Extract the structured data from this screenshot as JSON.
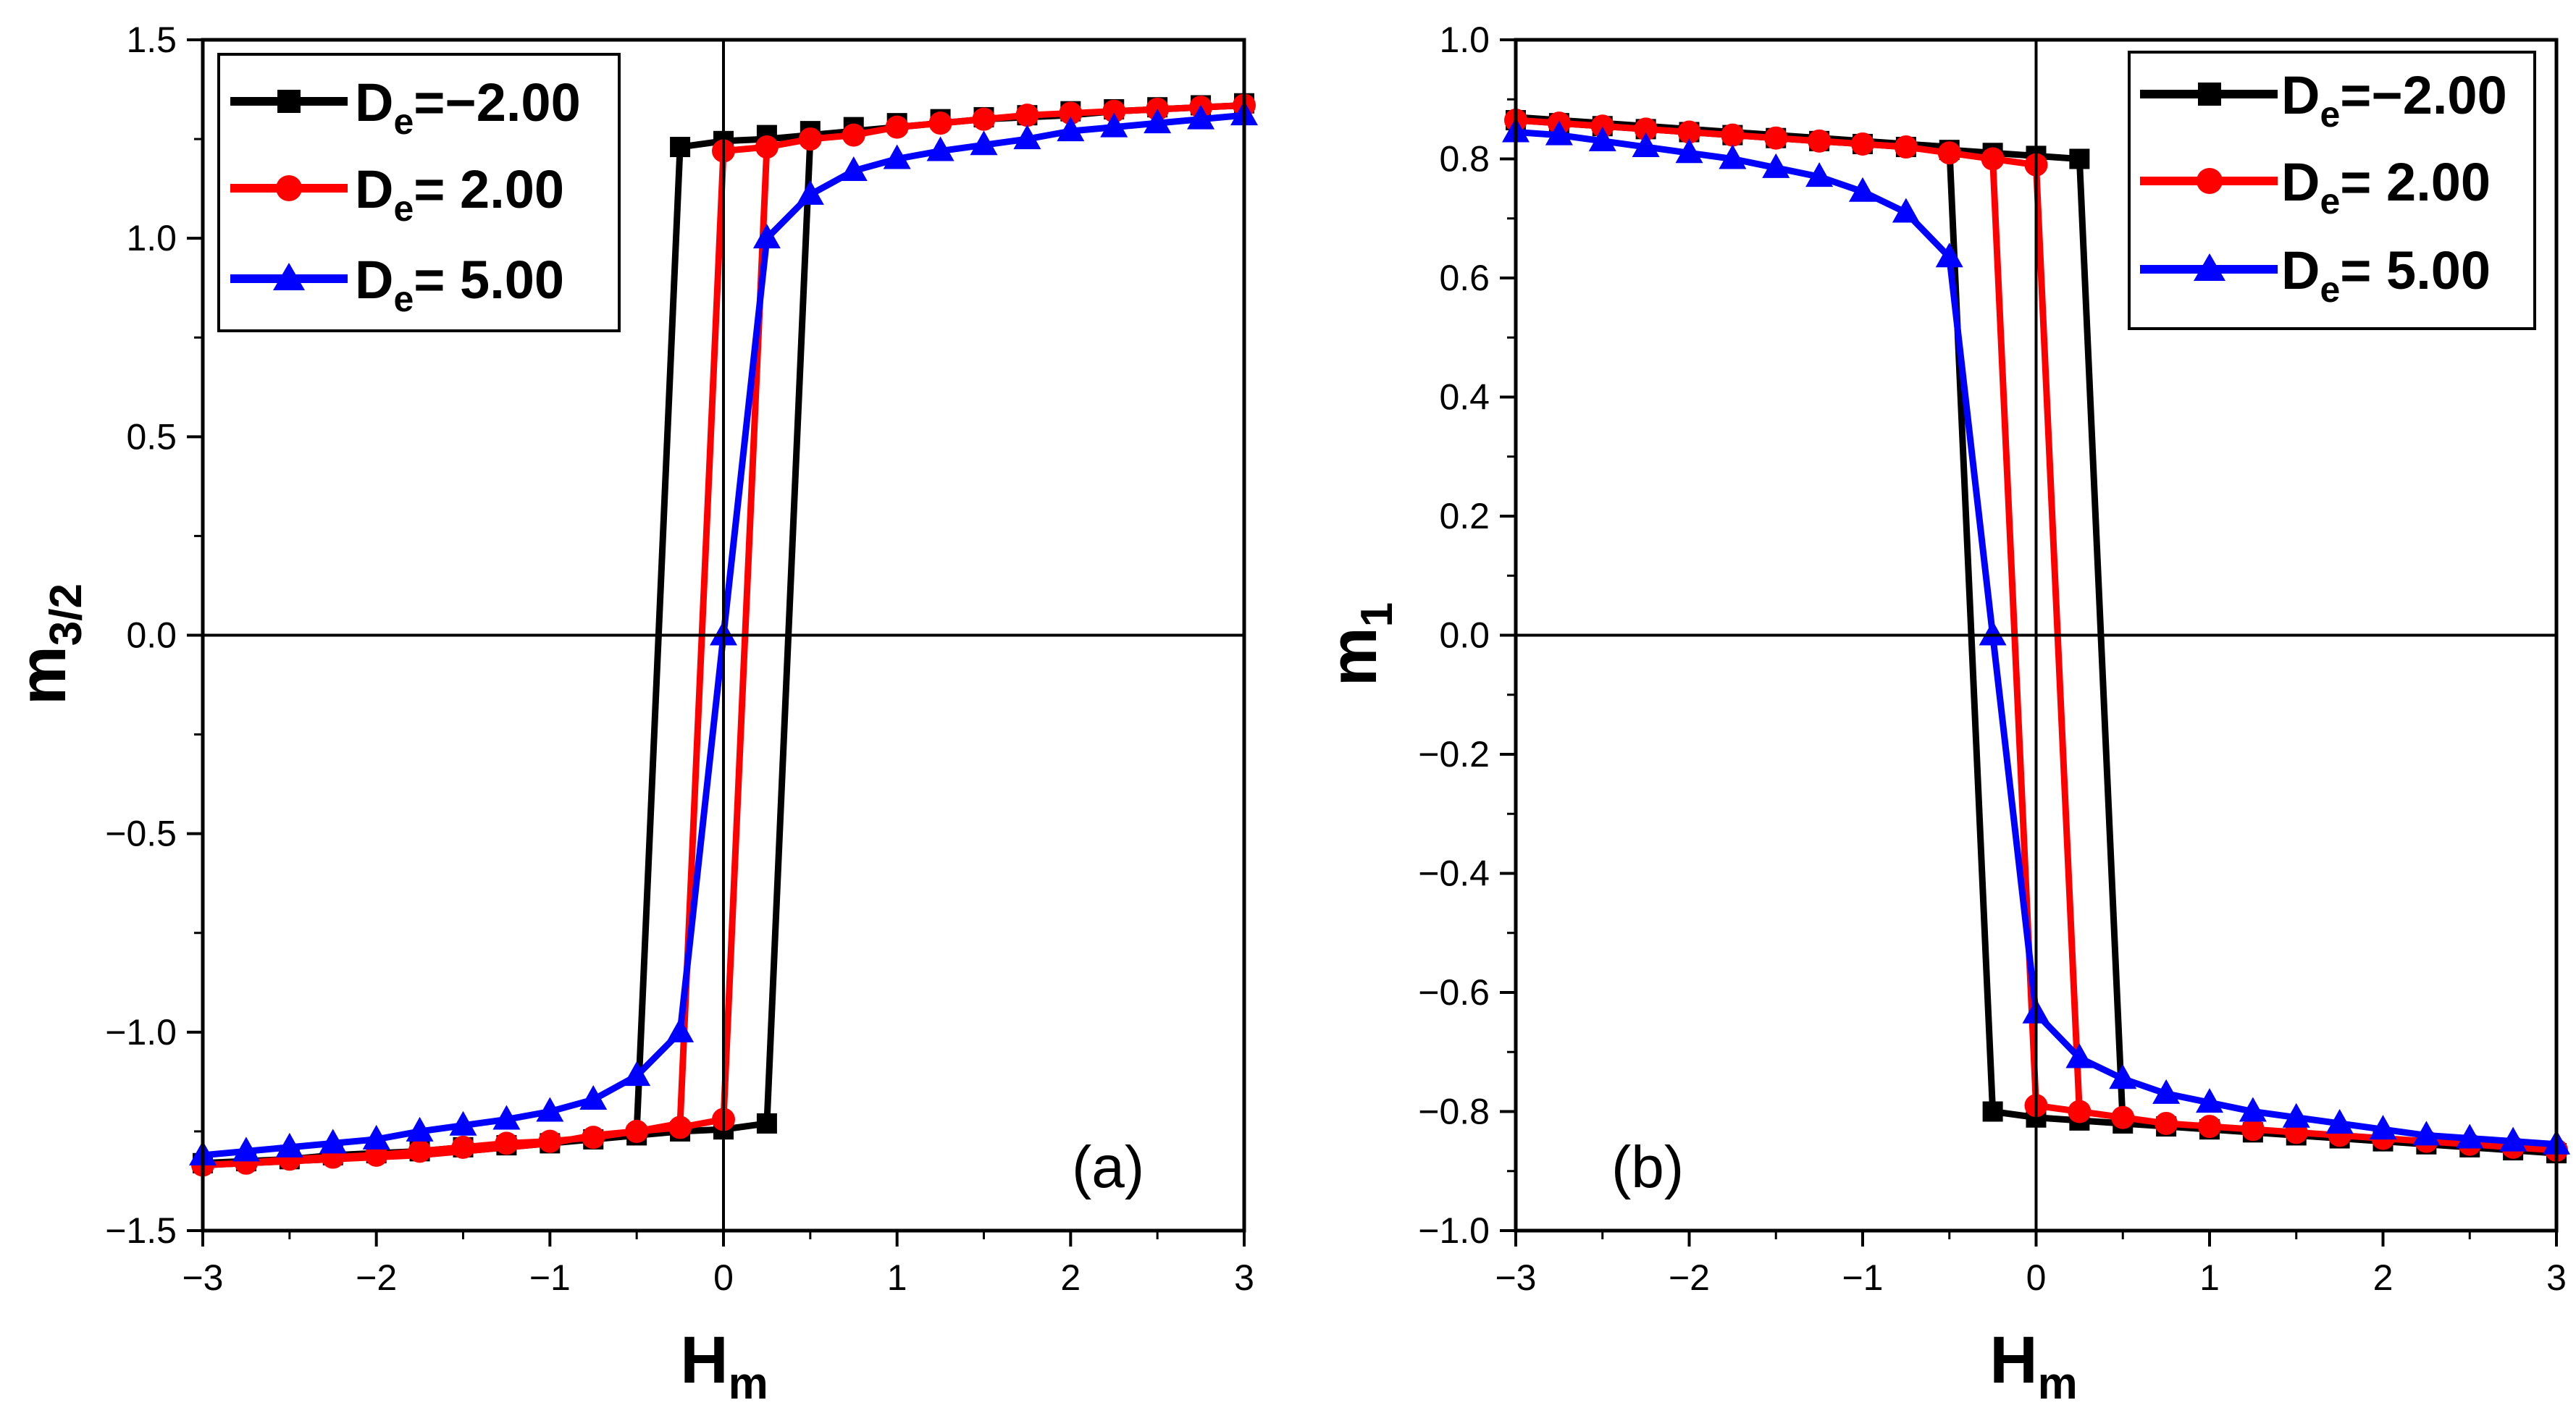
{
  "chart_data": [
    {
      "type": "line",
      "panel_label": "(a)",
      "xlabel": "H",
      "xlabel_sub": "m",
      "ylabel": "m",
      "ylabel_sub": "3/2",
      "xlim": [
        -3,
        3
      ],
      "ylim": [
        -1.5,
        1.5
      ],
      "xticks": [
        -3,
        -2,
        -1,
        0,
        1,
        2,
        3
      ],
      "xtick_labels": [
        "−3",
        "−2",
        "−1",
        "0",
        "1",
        "2",
        "3"
      ],
      "yticks": [
        -1.5,
        -1.0,
        -0.5,
        0.0,
        0.5,
        1.0,
        1.5
      ],
      "ytick_labels": [
        "−1.5",
        "−1.0",
        "−0.5",
        "0.0",
        "0.5",
        "1.0",
        "1.5"
      ],
      "legend_position": "top-left",
      "series": [
        {
          "name": "D_e=−2.00",
          "legend_main": "D",
          "legend_sub": "e",
          "legend_value": "=−2.00",
          "color": "#000000",
          "marker": "square",
          "x": [
            -3,
            -2.75,
            -2.5,
            -2.25,
            -2,
            -1.75,
            -1.5,
            -1.25,
            -1,
            -0.75,
            -0.5,
            -0.25,
            0,
            0.25,
            0.5,
            0.75,
            1,
            1.25,
            1.5,
            1.75,
            2,
            2.25,
            2.5,
            2.75,
            3,
            2.75,
            2.5,
            2.25,
            2,
            1.75,
            1.5,
            1.25,
            1,
            0.75,
            0.5,
            0.25,
            0,
            -0.25,
            -0.5,
            -0.75,
            -1,
            -1.25,
            -1.5,
            -1.75,
            -2,
            -2.25,
            -2.5,
            -2.75,
            -3
          ],
          "y": [
            -1.33,
            -1.325,
            -1.32,
            -1.31,
            -1.305,
            -1.3,
            -1.29,
            -1.285,
            -1.28,
            -1.27,
            -1.26,
            -1.25,
            -1.245,
            -1.23,
            1.25,
            1.27,
            1.28,
            1.29,
            1.3,
            1.305,
            1.31,
            1.32,
            1.325,
            1.33,
            1.335,
            1.33,
            1.325,
            1.32,
            1.31,
            1.305,
            1.3,
            1.29,
            1.28,
            1.27,
            1.26,
            1.25,
            1.245,
            1.23,
            -1.25,
            -1.27,
            -1.28,
            -1.29,
            -1.3,
            -1.305,
            -1.31,
            -1.32,
            -1.325,
            -1.33,
            -1.335
          ],
          "markers_x": [
            -3,
            -2.75,
            -2.5,
            -2.25,
            -2,
            -1.75,
            -1.5,
            -1.25,
            -1,
            -0.75,
            -0.5,
            -0.25,
            0,
            0.25,
            0.5,
            0.75,
            1,
            1.25,
            1.5,
            1.75,
            2,
            2.25,
            2.5,
            2.75,
            3
          ],
          "markers_y": [
            -1.33,
            -1.325,
            -1.32,
            -1.31,
            -1.305,
            -1.3,
            -1.29,
            -1.285,
            -1.28,
            -1.27,
            -1.26,
            -1.25,
            1.245,
            1.26,
            1.27,
            1.28,
            1.29,
            1.3,
            1.305,
            1.31,
            1.32,
            1.325,
            1.33,
            1.335,
            1.34
          ],
          "extra_markers_x": [
            -0.25,
            0,
            0.25
          ],
          "extra_markers_y": [
            1.23,
            -1.245,
            -1.23
          ]
        },
        {
          "name": "D_e= 2.00",
          "legend_main": "D",
          "legend_sub": "e",
          "legend_value": "= 2.00",
          "color": "#ff0000",
          "marker": "circle",
          "x": [
            -3,
            -2.75,
            -2.5,
            -2.25,
            -2,
            -1.75,
            -1.5,
            -1.25,
            -1,
            -0.75,
            -0.5,
            -0.25,
            0,
            0.25,
            0.5,
            0.75,
            1,
            1.25,
            1.5,
            1.75,
            2,
            2.25,
            2.5,
            2.75,
            3,
            2.75,
            2.5,
            2.25,
            2,
            1.75,
            1.5,
            1.25,
            1,
            0.75,
            0.5,
            0.25,
            0,
            -0.25,
            -0.5,
            -0.75,
            -1,
            -1.25,
            -1.5,
            -1.75,
            -2,
            -2.25,
            -2.5,
            -2.75,
            -3
          ],
          "y": [
            -1.335,
            -1.33,
            -1.32,
            -1.315,
            -1.31,
            -1.3,
            -1.29,
            -1.28,
            -1.275,
            -1.265,
            -1.25,
            -1.24,
            -1.22,
            1.23,
            1.25,
            1.26,
            1.28,
            1.29,
            1.3,
            1.31,
            1.315,
            1.32,
            1.325,
            1.33,
            1.335,
            1.33,
            1.325,
            1.32,
            1.315,
            1.31,
            1.3,
            1.29,
            1.28,
            1.26,
            1.25,
            1.23,
            1.22,
            -1.23,
            -1.25,
            -1.26,
            -1.28,
            -1.29,
            -1.3,
            -1.31,
            -1.315,
            -1.32,
            -1.325,
            -1.33,
            -1.335
          ],
          "markers_x": [
            -3,
            -2.75,
            -2.5,
            -2.25,
            -2,
            -1.75,
            -1.5,
            -1.25,
            -1,
            -0.75,
            -0.5,
            -0.25,
            0,
            0,
            0.25,
            0.5,
            0.75,
            1,
            1.25,
            1.5,
            1.75,
            2,
            2.25,
            2.5,
            2.75,
            3
          ],
          "markers_y": [
            -1.335,
            -1.33,
            -1.32,
            -1.315,
            -1.31,
            -1.3,
            -1.29,
            -1.28,
            -1.275,
            -1.265,
            -1.25,
            -1.24,
            -1.22,
            1.22,
            1.23,
            1.25,
            1.26,
            1.28,
            1.29,
            1.3,
            1.31,
            1.315,
            1.32,
            1.325,
            1.33,
            1.335
          ]
        },
        {
          "name": "D_e= 5.00",
          "legend_main": "D",
          "legend_sub": "e",
          "legend_value": "= 5.00",
          "color": "#0000ff",
          "marker": "triangle",
          "x": [
            -3,
            -2.75,
            -2.5,
            -2.25,
            -2,
            -1.75,
            -1.5,
            -1.25,
            -1,
            -0.75,
            -0.5,
            -0.25,
            0,
            0.25,
            0.5,
            0.75,
            1,
            1.25,
            1.5,
            1.75,
            2,
            2.25,
            2.5,
            2.75,
            3
          ],
          "y": [
            -1.31,
            -1.3,
            -1.29,
            -1.28,
            -1.27,
            -1.25,
            -1.235,
            -1.22,
            -1.2,
            -1.17,
            -1.11,
            -1.0,
            0.0,
            1.0,
            1.11,
            1.17,
            1.2,
            1.22,
            1.235,
            1.25,
            1.27,
            1.28,
            1.29,
            1.3,
            1.31
          ]
        }
      ]
    },
    {
      "type": "line",
      "panel_label": "(b)",
      "xlabel": "H",
      "xlabel_sub": "m",
      "ylabel": "m",
      "ylabel_sub": "1",
      "xlim": [
        -3,
        3
      ],
      "ylim": [
        -1.0,
        1.0
      ],
      "xticks": [
        -3,
        -2,
        -1,
        0,
        1,
        2,
        3
      ],
      "xtick_labels": [
        "−3",
        "−2",
        "−1",
        "0",
        "1",
        "2",
        "3"
      ],
      "yticks": [
        -1.0,
        -0.8,
        -0.6,
        -0.4,
        -0.2,
        0.0,
        0.2,
        0.4,
        0.6,
        0.8,
        1.0
      ],
      "ytick_labels": [
        "−1.0",
        "−0.8",
        "−0.6",
        "−0.4",
        "−0.2",
        "0.0",
        "0.2",
        "0.4",
        "0.6",
        "0.8",
        "1.0"
      ],
      "legend_position": "top-right",
      "series": [
        {
          "name": "D_e=−2.00",
          "legend_main": "D",
          "legend_sub": "e",
          "legend_value": "=−2.00",
          "color": "#000000",
          "marker": "square",
          "x": [
            -3,
            -2.75,
            -2.5,
            -2.25,
            -2,
            -1.75,
            -1.5,
            -1.25,
            -1,
            -0.75,
            -0.5,
            -0.25,
            0,
            0.25,
            0.5,
            0.75,
            1,
            1.25,
            1.5,
            1.75,
            2,
            2.25,
            2.5,
            2.75,
            3,
            2.75,
            2.5,
            2.25,
            2,
            1.75,
            1.5,
            1.25,
            1,
            0.75,
            0.5,
            0.25,
            0,
            -0.25,
            -0.5,
            -0.75,
            -1,
            -1.25,
            -1.5,
            -1.75,
            -2,
            -2.25,
            -2.5,
            -2.75,
            -3
          ],
          "y": [
            0.865,
            0.86,
            0.855,
            0.85,
            0.845,
            0.84,
            0.835,
            0.83,
            0.825,
            0.82,
            0.815,
            0.81,
            0.805,
            0.8,
            -0.82,
            -0.825,
            -0.83,
            -0.835,
            -0.84,
            -0.845,
            -0.85,
            -0.855,
            -0.86,
            -0.865,
            -0.87,
            -0.865,
            -0.86,
            -0.855,
            -0.85,
            -0.845,
            -0.84,
            -0.835,
            -0.83,
            -0.825,
            -0.82,
            -0.815,
            -0.81,
            -0.8,
            0.82,
            0.825,
            0.83,
            0.835,
            0.84,
            0.845,
            0.85,
            0.855,
            0.86,
            0.865,
            0.87
          ],
          "markers_x": [
            -3,
            -2.75,
            -2.5,
            -2.25,
            -2,
            -1.75,
            -1.5,
            -1.25,
            -1,
            -0.75,
            -0.5,
            -0.25,
            0,
            0.25,
            0,
            0.25,
            0.5,
            0.75,
            1,
            1.25,
            1.5,
            1.75,
            2,
            2.25,
            2.5,
            2.75,
            3,
            -0.25
          ],
          "markers_y": [
            0.865,
            0.86,
            0.855,
            0.85,
            0.845,
            0.84,
            0.835,
            0.83,
            0.825,
            0.82,
            0.815,
            0.81,
            0.805,
            0.8,
            -0.81,
            -0.815,
            -0.82,
            -0.825,
            -0.83,
            -0.835,
            -0.84,
            -0.845,
            -0.85,
            -0.855,
            -0.86,
            -0.865,
            -0.87,
            -0.8
          ]
        },
        {
          "name": "D_e= 2.00",
          "legend_main": "D",
          "legend_sub": "e",
          "legend_value": "= 2.00",
          "color": "#ff0000",
          "marker": "circle",
          "x": [
            -3,
            -2.75,
            -2.5,
            -2.25,
            -2,
            -1.75,
            -1.5,
            -1.25,
            -1,
            -0.75,
            -0.5,
            -0.25,
            0,
            0.25,
            0.5,
            0.75,
            1,
            1.25,
            1.5,
            1.75,
            2,
            2.25,
            2.5,
            2.75,
            3,
            2.75,
            2.5,
            2.25,
            2,
            1.75,
            1.5,
            1.25,
            1,
            0.75,
            0.5,
            0.25,
            0,
            -0.25,
            -0.5,
            -0.75,
            -1,
            -1.25,
            -1.5,
            -1.75,
            -2,
            -2.25,
            -2.5,
            -2.75,
            -3
          ],
          "y": [
            0.865,
            0.86,
            0.855,
            0.85,
            0.845,
            0.84,
            0.835,
            0.83,
            0.825,
            0.82,
            0.81,
            0.8,
            0.79,
            -0.8,
            -0.81,
            -0.82,
            -0.825,
            -0.83,
            -0.835,
            -0.84,
            -0.845,
            -0.85,
            -0.855,
            -0.86,
            -0.865,
            -0.86,
            -0.855,
            -0.85,
            -0.845,
            -0.84,
            -0.835,
            -0.83,
            -0.825,
            -0.82,
            -0.81,
            -0.8,
            -0.79,
            0.8,
            0.81,
            0.82,
            0.825,
            0.83,
            0.835,
            0.84,
            0.845,
            0.85,
            0.855,
            0.86,
            0.865
          ],
          "markers_x": [
            -3,
            -2.75,
            -2.5,
            -2.25,
            -2,
            -1.75,
            -1.5,
            -1.25,
            -1,
            -0.75,
            -0.5,
            -0.25,
            0,
            0,
            0.25,
            0.5,
            0.75,
            1,
            1.25,
            1.5,
            1.75,
            2,
            2.25,
            2.5,
            2.75,
            3
          ],
          "markers_y": [
            0.865,
            0.86,
            0.855,
            0.85,
            0.845,
            0.84,
            0.835,
            0.83,
            0.825,
            0.82,
            0.81,
            0.8,
            0.79,
            -0.79,
            -0.8,
            -0.81,
            -0.82,
            -0.825,
            -0.83,
            -0.835,
            -0.84,
            -0.845,
            -0.85,
            -0.855,
            -0.86,
            -0.865
          ]
        },
        {
          "name": "D_e= 5.00",
          "legend_main": "D",
          "legend_sub": "e",
          "legend_value": "= 5.00",
          "color": "#0000ff",
          "marker": "triangle",
          "x": [
            -3,
            -2.75,
            -2.5,
            -2.25,
            -2,
            -1.75,
            -1.5,
            -1.25,
            -1,
            -0.75,
            -0.5,
            -0.25,
            0,
            0.25,
            0.5,
            0.75,
            1,
            1.25,
            1.5,
            1.75,
            2,
            2.25,
            2.5,
            2.75,
            3
          ],
          "y": [
            0.845,
            0.84,
            0.83,
            0.82,
            0.81,
            0.8,
            0.785,
            0.77,
            0.745,
            0.71,
            0.635,
            0.0,
            -0.635,
            -0.71,
            -0.745,
            -0.77,
            -0.785,
            -0.8,
            -0.81,
            -0.82,
            -0.83,
            -0.84,
            -0.845,
            -0.85,
            -0.855
          ]
        }
      ]
    }
  ]
}
